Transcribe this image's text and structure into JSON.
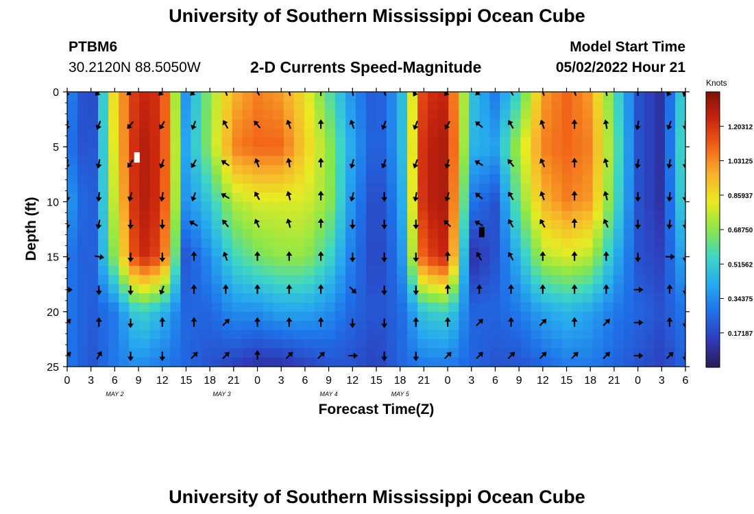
{
  "header": {
    "title": "University of Southern Mississippi Ocean Cube",
    "station": "PTBM6",
    "location": "30.2120N  88.5050W",
    "plot_title": "2-D Currents Speed-Magnitude",
    "model_start_label": "Model Start Time",
    "model_start_value": "05/02/2022 Hour 21"
  },
  "footer": {
    "title": "University of Southern Mississippi Ocean Cube"
  },
  "colors": {
    "scale": [
      "#2a1a55",
      "#2f3bb8",
      "#1f6fe8",
      "#27a9ee",
      "#3ed6c6",
      "#8ae64a",
      "#e9ea23",
      "#f8b22c",
      "#f26419",
      "#c9250e",
      "#801109"
    ]
  },
  "chart_data": {
    "type": "heatmap",
    "title": "2-D Currents Speed-Magnitude",
    "xlabel": "Forecast Time(Z)",
    "ylabel": "Depth (ft)",
    "ylim": [
      0,
      25
    ],
    "yticks": [
      "0",
      "5",
      "10",
      "15",
      "20",
      "25"
    ],
    "xticks": [
      "0",
      "3",
      "6",
      "9",
      "12",
      "15",
      "18",
      "21",
      "0",
      "3",
      "6",
      "9",
      "12",
      "15",
      "18",
      "21",
      "0",
      "3",
      "6",
      "9",
      "12",
      "15",
      "18",
      "21",
      "0",
      "3",
      "6"
    ],
    "date_labels": [
      {
        "label": "MAY 2",
        "tick_index": 4
      },
      {
        "label": "MAY 3",
        "tick_index": 13
      },
      {
        "label": "MAY 4",
        "tick_index": 22
      },
      {
        "label": "MAY 5",
        "tick_index": 28
      }
    ],
    "colorbar": {
      "unit": "Knots",
      "ticks": [
        "1.20312",
        "1.03125",
        "0.85937",
        "0.68750",
        "0.51562",
        "0.34375",
        "0.17187"
      ],
      "range": [
        0,
        1.375
      ]
    },
    "time_hours": [
      0,
      3,
      6,
      9,
      12,
      15,
      18,
      21,
      24,
      27,
      30,
      33,
      36,
      39,
      42,
      45,
      48,
      51,
      54,
      57,
      60,
      63,
      66,
      69,
      72,
      75,
      78
    ],
    "depths_ft": [
      0,
      5,
      10,
      15,
      20,
      25
    ],
    "speed_knots": [
      [
        0.35,
        0.12,
        0.9,
        1.25,
        1.2,
        0.35,
        0.7,
        0.95,
        1.05,
        1.0,
        0.85,
        0.6,
        0.35,
        0.2,
        0.4,
        1.2,
        1.25,
        0.5,
        0.3,
        0.55,
        1.0,
        1.1,
        1.0,
        0.6,
        0.2,
        0.1,
        0.6
      ],
      [
        0.3,
        0.15,
        0.85,
        1.3,
        1.2,
        0.4,
        0.7,
        1.05,
        1.1,
        1.1,
        0.9,
        0.7,
        0.4,
        0.2,
        0.4,
        1.25,
        1.3,
        0.45,
        0.4,
        0.75,
        1.05,
        1.1,
        1.05,
        0.65,
        0.2,
        0.1,
        0.65
      ],
      [
        0.4,
        0.18,
        0.8,
        1.3,
        1.2,
        0.35,
        0.5,
        0.75,
        0.8,
        0.8,
        0.8,
        0.7,
        0.35,
        0.15,
        0.35,
        1.25,
        1.3,
        0.3,
        0.2,
        0.65,
        0.95,
        1.05,
        1.0,
        0.6,
        0.2,
        0.1,
        0.6
      ],
      [
        0.3,
        0.2,
        0.7,
        1.25,
        1.15,
        0.2,
        0.35,
        0.55,
        0.65,
        0.7,
        0.7,
        0.55,
        0.3,
        0.15,
        0.3,
        1.15,
        1.25,
        0.1,
        0.2,
        0.45,
        0.75,
        0.8,
        0.75,
        0.45,
        0.2,
        0.15,
        0.45
      ],
      [
        0.3,
        0.22,
        0.3,
        0.55,
        0.45,
        0.25,
        0.25,
        0.35,
        0.35,
        0.4,
        0.4,
        0.35,
        0.25,
        0.2,
        0.25,
        0.5,
        0.55,
        0.25,
        0.25,
        0.3,
        0.4,
        0.45,
        0.4,
        0.3,
        0.25,
        0.2,
        0.3
      ],
      [
        0.3,
        0.2,
        0.3,
        0.35,
        0.3,
        0.25,
        0.2,
        0.15,
        0.1,
        0.1,
        0.15,
        0.2,
        0.2,
        0.15,
        0.25,
        0.3,
        0.3,
        0.25,
        0.2,
        0.2,
        0.25,
        0.3,
        0.3,
        0.25,
        0.2,
        0.15,
        0.25
      ]
    ],
    "vectors": {
      "times_hours": [
        0,
        4,
        8,
        12,
        16,
        20,
        24,
        28,
        32,
        36,
        40,
        44,
        48,
        52,
        56,
        60,
        64,
        68,
        72,
        76,
        78
      ],
      "depths_ft": [
        0,
        3,
        6.5,
        9.5,
        12,
        15,
        18,
        21,
        24
      ],
      "direction_deg": [
        [
          200,
          225,
          230,
          225,
          225,
          340,
          330,
          345,
          0,
          350,
          340,
          210,
          220,
          230,
          330,
          340,
          340,
          350,
          0,
          210,
          200
        ],
        [
          190,
          200,
          220,
          210,
          200,
          330,
          320,
          340,
          0,
          340,
          200,
          200,
          210,
          310,
          330,
          340,
          0,
          350,
          190,
          200,
          180
        ],
        [
          190,
          190,
          215,
          200,
          210,
          305,
          340,
          350,
          0,
          195,
          200,
          200,
          195,
          300,
          320,
          335,
          0,
          345,
          190,
          190,
          180
        ],
        [
          180,
          185,
          195,
          190,
          200,
          300,
          330,
          345,
          0,
          195,
          180,
          190,
          195,
          310,
          330,
          340,
          0,
          345,
          180,
          185,
          180
        ],
        [
          180,
          190,
          180,
          180,
          300,
          320,
          335,
          345,
          0,
          180,
          180,
          180,
          315,
          300,
          330,
          330,
          0,
          335,
          180,
          185,
          180
        ],
        [
          180,
          100,
          180,
          180,
          0,
          340,
          0,
          0,
          0,
          180,
          180,
          180,
          0,
          330,
          330,
          0,
          0,
          0,
          180,
          90,
          180
        ],
        [
          90,
          180,
          180,
          200,
          0,
          0,
          0,
          0,
          0,
          135,
          180,
          180,
          0,
          0,
          0,
          0,
          0,
          0,
          90,
          0,
          180
        ],
        [
          45,
          0,
          180,
          0,
          0,
          45,
          0,
          0,
          0,
          180,
          180,
          0,
          0,
          45,
          0,
          45,
          0,
          45,
          90,
          0,
          180
        ],
        [
          45,
          30,
          180,
          180,
          45,
          45,
          0,
          45,
          45,
          90,
          180,
          180,
          45,
          45,
          45,
          45,
          45,
          45,
          90,
          45,
          180
        ]
      ]
    },
    "markers": [
      {
        "time_hours": 8.8,
        "depth_ft": 6,
        "color": "#ffffff"
      },
      {
        "time_hours": 52.3,
        "depth_ft": 12.8,
        "color": "#000000"
      }
    ]
  }
}
